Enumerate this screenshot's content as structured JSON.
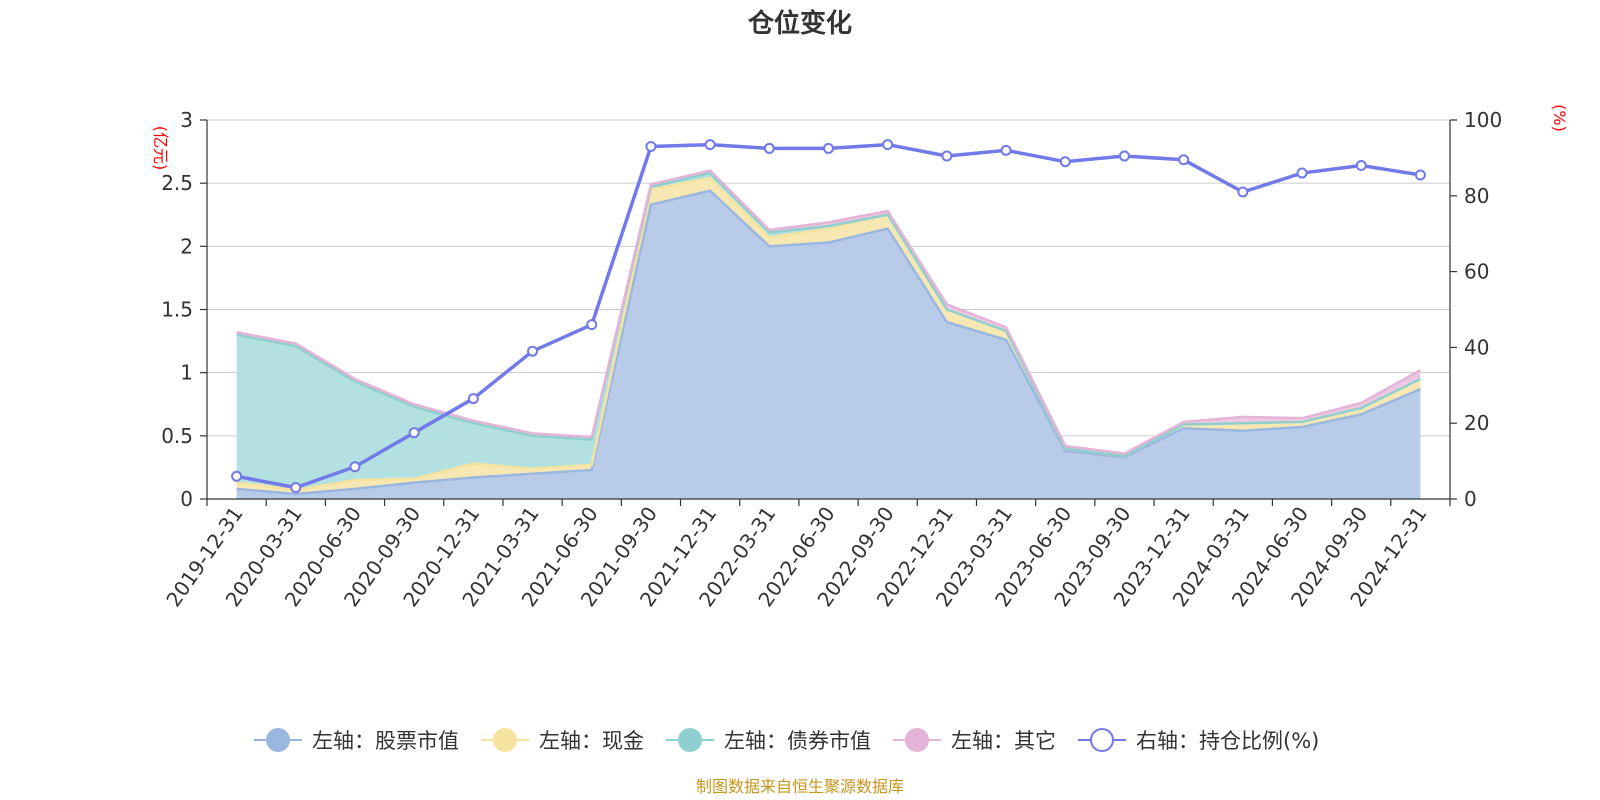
{
  "chart_data": {
    "type": "area",
    "title": "仓位变化",
    "left_unit": "(亿元)",
    "right_unit": "(%)",
    "categories": [
      "2019-12-31",
      "2020-03-31",
      "2020-06-30",
      "2020-09-30",
      "2020-12-31",
      "2021-03-31",
      "2021-06-30",
      "2021-09-30",
      "2021-12-31",
      "2022-03-31",
      "2022-06-30",
      "2022-09-30",
      "2022-12-31",
      "2023-03-31",
      "2023-06-30",
      "2023-09-30",
      "2023-12-31",
      "2024-03-31",
      "2024-06-30",
      "2024-09-30",
      "2024-12-31"
    ],
    "left_axis": {
      "min": 0,
      "max": 3,
      "ticks": [
        0,
        0.5,
        1,
        1.5,
        2,
        2.5,
        3
      ],
      "tick_labels": [
        "0",
        "0.5",
        "1",
        "1.5",
        "2",
        "2.5",
        "3"
      ]
    },
    "right_axis": {
      "min": 0,
      "max": 100,
      "ticks": [
        0,
        20,
        40,
        60,
        80,
        100
      ],
      "tick_labels": [
        "0",
        "20",
        "40",
        "60",
        "80",
        "100"
      ]
    },
    "stacked_series": [
      {
        "name": "左轴：股票市值",
        "color": "#9ab7e0",
        "fill": "#b8cce9",
        "values": [
          0.08,
          0.04,
          0.08,
          0.13,
          0.17,
          0.2,
          0.23,
          2.33,
          2.44,
          2.0,
          2.03,
          2.14,
          1.4,
          1.26,
          0.38,
          0.33,
          0.56,
          0.54,
          0.57,
          0.67,
          0.87
        ]
      },
      {
        "name": "左轴：现金",
        "color": "#f5e3a0",
        "fill": "#f7e8b3",
        "values": [
          0.05,
          0.03,
          0.07,
          0.03,
          0.11,
          0.04,
          0.04,
          0.12,
          0.1,
          0.07,
          0.11,
          0.11,
          0.1,
          0.07,
          0.02,
          0.01,
          0.03,
          0.06,
          0.04,
          0.05,
          0.08
        ]
      },
      {
        "name": "左轴：债券市值",
        "color": "#8fcfcf",
        "fill": "#b3e0e0",
        "values": [
          1.17,
          1.14,
          0.78,
          0.57,
          0.32,
          0.26,
          0.2,
          0.02,
          0.04,
          0.04,
          0.02,
          0.0,
          0.0,
          0.0,
          0.0,
          0.0,
          0.0,
          0.0,
          0.0,
          0.0,
          0.0
        ]
      },
      {
        "name": "左轴：其它",
        "color": "#e4b4d8",
        "fill": "#eec8e2",
        "values": [
          0.02,
          0.02,
          0.02,
          0.02,
          0.02,
          0.02,
          0.02,
          0.02,
          0.02,
          0.02,
          0.03,
          0.03,
          0.04,
          0.03,
          0.02,
          0.02,
          0.02,
          0.05,
          0.03,
          0.04,
          0.07
        ]
      }
    ],
    "line_series": {
      "name": "右轴：持仓比例(%)",
      "color": "#7279e8",
      "values": [
        6,
        3,
        8.5,
        17.5,
        26.5,
        39,
        46,
        93,
        93.5,
        92.5,
        92.5,
        93.5,
        90.5,
        92,
        89,
        90.5,
        89.5,
        81,
        86,
        88,
        85.5
      ]
    },
    "legend_position": "bottom",
    "grid": true
  },
  "source_text": "制图数据来自恒生聚源数据库"
}
